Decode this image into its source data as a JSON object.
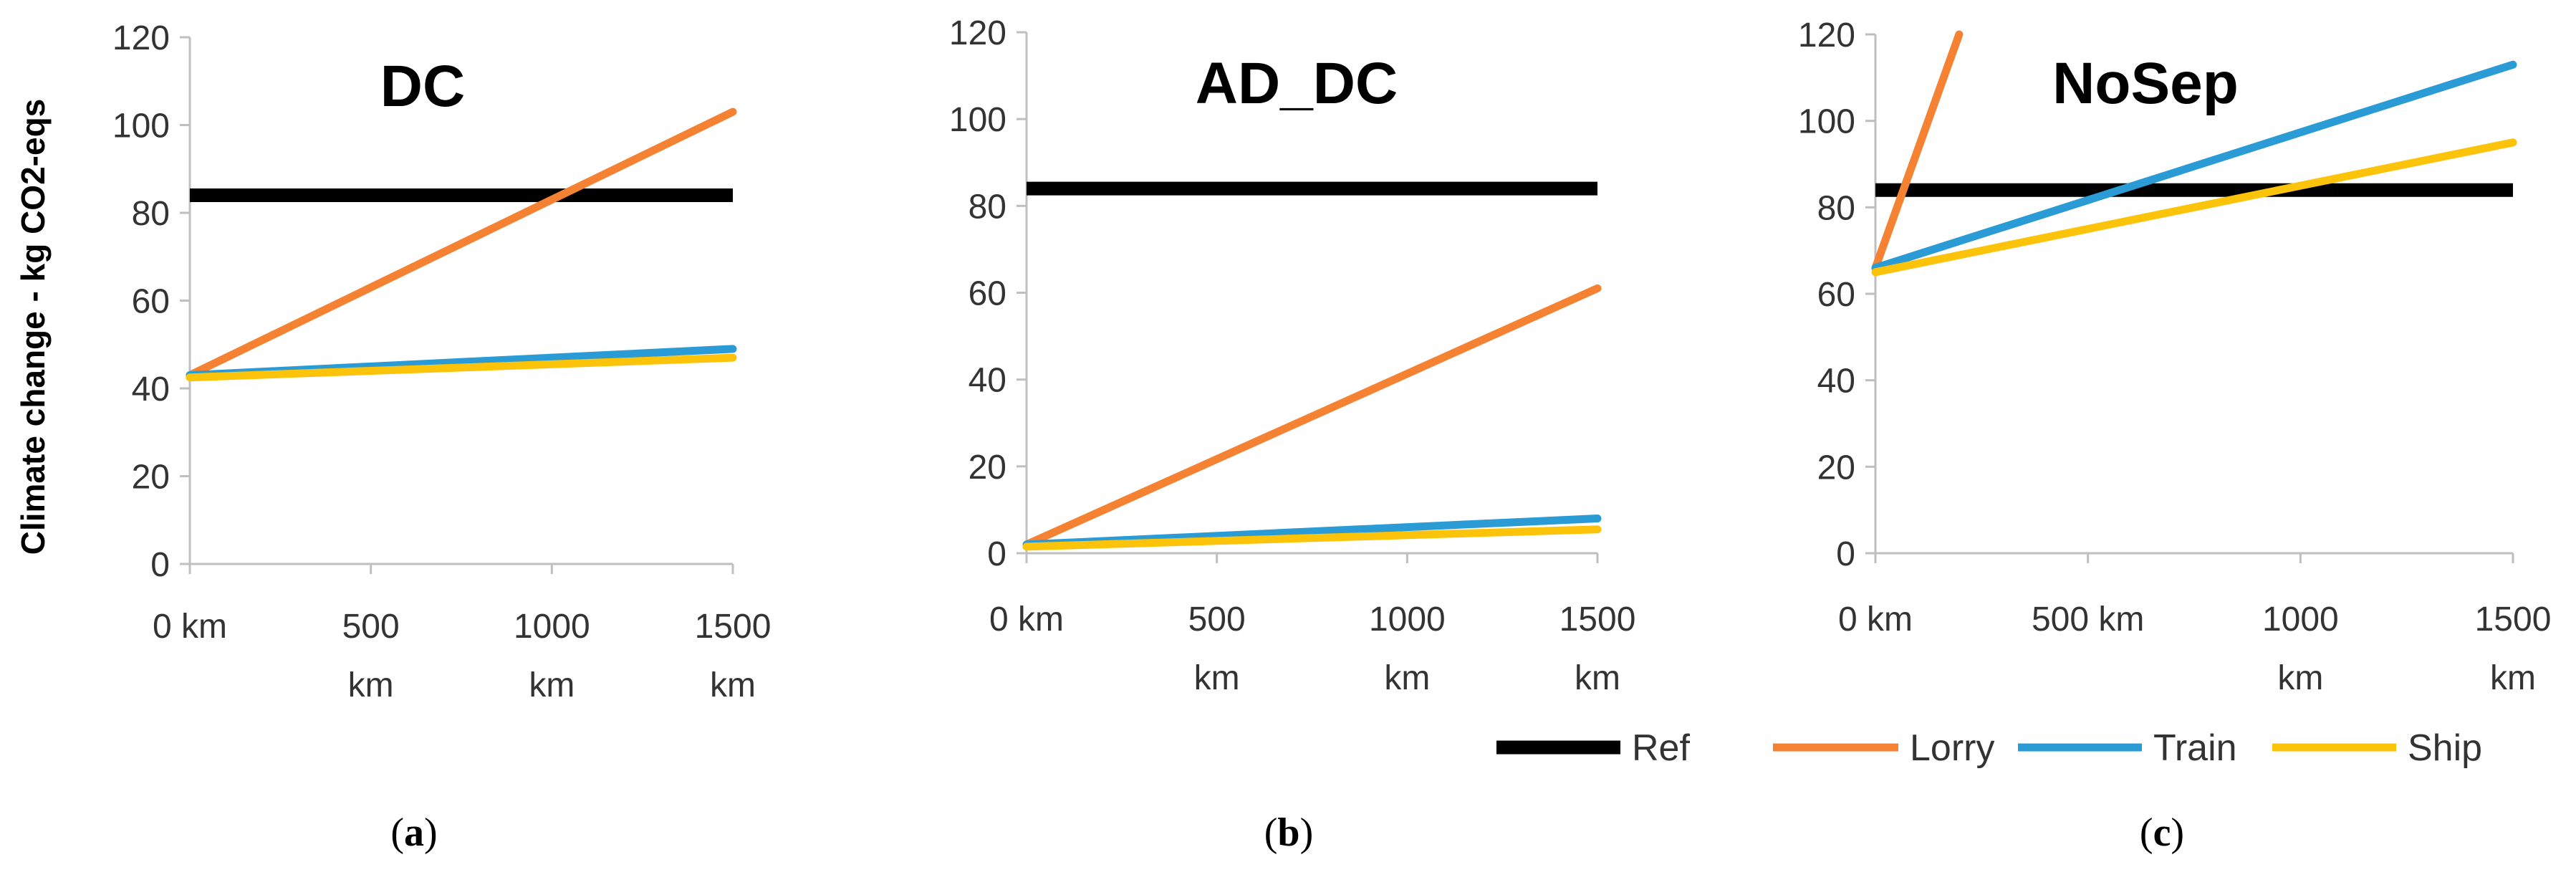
{
  "chart_data": [
    {
      "type": "line",
      "title": "DC",
      "caption_letter": "a",
      "ylabel": "Climate change - kg CO2-eqs",
      "ylim": [
        0,
        120
      ],
      "xlim": [
        0,
        1500
      ],
      "y_ticks": [
        "0",
        "20",
        "40",
        "60",
        "80",
        "100",
        "120"
      ],
      "x_ticks": [
        {
          "value": 0,
          "lines": [
            "0 km"
          ]
        },
        {
          "value": 500,
          "lines": [
            "500",
            "km"
          ]
        },
        {
          "value": 1000,
          "lines": [
            "1000",
            "km"
          ]
        },
        {
          "value": 1500,
          "lines": [
            "1500",
            "km"
          ]
        }
      ],
      "series": [
        {
          "name": "Ref",
          "x": [
            0,
            1500
          ],
          "y": [
            84,
            84
          ]
        },
        {
          "name": "Lorry",
          "x": [
            0,
            1500
          ],
          "y": [
            43,
            103
          ]
        },
        {
          "name": "Train",
          "x": [
            0,
            1500
          ],
          "y": [
            43,
            49
          ]
        },
        {
          "name": "Ship",
          "x": [
            0,
            1500
          ],
          "y": [
            42.5,
            47
          ]
        }
      ]
    },
    {
      "type": "line",
      "title": "AD_DC",
      "caption_letter": "b",
      "ylabel": "",
      "ylim": [
        0,
        120
      ],
      "xlim": [
        0,
        1500
      ],
      "y_ticks": [
        "0",
        "20",
        "40",
        "60",
        "80",
        "100",
        "120"
      ],
      "x_ticks": [
        {
          "value": 0,
          "lines": [
            "0 km"
          ]
        },
        {
          "value": 500,
          "lines": [
            "500",
            "km"
          ]
        },
        {
          "value": 1000,
          "lines": [
            "1000",
            "km"
          ]
        },
        {
          "value": 1500,
          "lines": [
            "1500",
            "km"
          ]
        }
      ],
      "series": [
        {
          "name": "Ref",
          "x": [
            0,
            1500
          ],
          "y": [
            84,
            84
          ]
        },
        {
          "name": "Lorry",
          "x": [
            0,
            1500
          ],
          "y": [
            2,
            61
          ]
        },
        {
          "name": "Train",
          "x": [
            0,
            1500
          ],
          "y": [
            2,
            8
          ]
        },
        {
          "name": "Ship",
          "x": [
            0,
            1500
          ],
          "y": [
            1.5,
            5.5
          ]
        }
      ]
    },
    {
      "type": "line",
      "title": "NoSep",
      "caption_letter": "c",
      "ylabel": "",
      "ylim": [
        0,
        120
      ],
      "xlim": [
        0,
        1500
      ],
      "y_ticks": [
        "0",
        "20",
        "40",
        "60",
        "80",
        "100",
        "120"
      ],
      "x_ticks": [
        {
          "value": 0,
          "lines": [
            "0 km"
          ]
        },
        {
          "value": 500,
          "lines": [
            "500 km"
          ]
        },
        {
          "value": 1000,
          "lines": [
            "1000",
            "km"
          ]
        },
        {
          "value": 1500,
          "lines": [
            "1500",
            "km"
          ]
        }
      ],
      "series": [
        {
          "name": "Ref",
          "x": [
            0,
            1500
          ],
          "y": [
            84,
            84
          ]
        },
        {
          "name": "Lorry",
          "x": [
            0,
            197
          ],
          "y": [
            66,
            120
          ]
        },
        {
          "name": "Train",
          "x": [
            0,
            1500
          ],
          "y": [
            66,
            113
          ]
        },
        {
          "name": "Ship",
          "x": [
            0,
            1500
          ],
          "y": [
            65,
            95
          ]
        }
      ]
    }
  ],
  "legend": {
    "position": "bottom-right",
    "items": [
      {
        "name": "Ref",
        "color": "#000000"
      },
      {
        "name": "Lorry",
        "color": "#F58232"
      },
      {
        "name": "Train",
        "color": "#2A9BD5"
      },
      {
        "name": "Ship",
        "color": "#FCC30B"
      }
    ]
  },
  "style": {
    "series_colors": {
      "Ref": "#000000",
      "Lorry": "#F58232",
      "Train": "#2A9BD5",
      "Ship": "#FCC30B"
    },
    "axis_color": "#BFBFBF",
    "grid": false
  }
}
